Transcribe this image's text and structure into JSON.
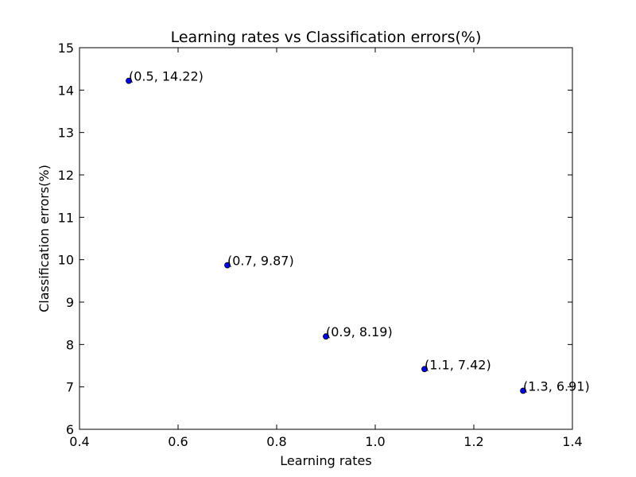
{
  "chart_data": {
    "type": "scatter",
    "title": "Learning rates vs Classification errors(%)",
    "xlabel": "Learning rates",
    "ylabel": "Classification errors(%)",
    "xlim": [
      0.4,
      1.4
    ],
    "ylim": [
      6,
      15
    ],
    "x_ticks": [
      "0.4",
      "0.6",
      "0.8",
      "1.0",
      "1.2",
      "1.4"
    ],
    "y_ticks": [
      "6",
      "7",
      "8",
      "9",
      "10",
      "11",
      "12",
      "13",
      "14",
      "15"
    ],
    "grid": false,
    "legend": "none",
    "marker_color": "#0000ff",
    "points": [
      {
        "x": 0.5,
        "y": 14.22,
        "label": "(0.5, 14.22)"
      },
      {
        "x": 0.7,
        "y": 9.87,
        "label": "(0.7, 9.87)"
      },
      {
        "x": 0.9,
        "y": 8.19,
        "label": "(0.9, 8.19)"
      },
      {
        "x": 1.1,
        "y": 7.42,
        "label": "(1.1, 7.42)"
      },
      {
        "x": 1.3,
        "y": 6.91,
        "label": "(1.3, 6.91)"
      }
    ]
  }
}
